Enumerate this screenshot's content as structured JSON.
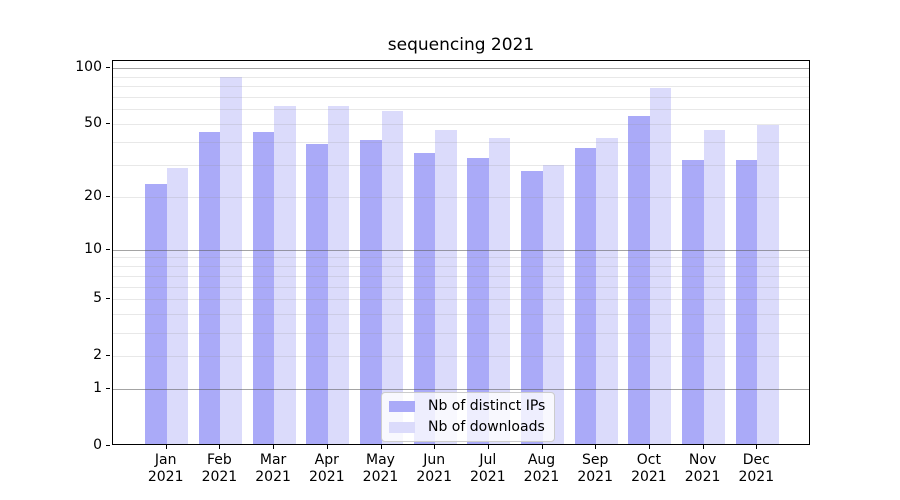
{
  "chart_data": {
    "type": "bar",
    "title": "sequencing 2021",
    "categories": [
      "Jan",
      "Feb",
      "Mar",
      "Apr",
      "May",
      "Jun",
      "Jul",
      "Aug",
      "Sep",
      "Oct",
      "Nov",
      "Dec"
    ],
    "x_tick_year": "2021",
    "series": [
      {
        "name": "Nb of distinct IPs",
        "color": "#aaaaf8",
        "values": [
          23,
          44,
          44,
          38,
          40,
          34,
          32,
          27,
          36,
          54,
          31,
          31
        ]
      },
      {
        "name": "Nb of downloads",
        "color": "#dbdbfb",
        "values": [
          28,
          87,
          61,
          61,
          57,
          45,
          41,
          29,
          41,
          76,
          45,
          48
        ]
      }
    ],
    "yscale": "log1p",
    "ylim": [
      0,
      109
    ],
    "ytick_values": [
      100,
      50,
      20,
      10,
      5,
      2,
      1,
      0
    ],
    "ytick_labels": [
      "100",
      "50",
      "20",
      "10",
      "5",
      "2",
      "1",
      "0"
    ],
    "major_gridline_values": [
      1,
      10,
      100
    ],
    "minor_gridline_values": [
      2,
      3,
      4,
      5,
      6,
      7,
      8,
      9,
      20,
      30,
      40,
      50,
      60,
      70,
      80,
      90
    ],
    "legend_position": "lower center",
    "grid": "both",
    "xlabel": "",
    "ylabel": ""
  }
}
